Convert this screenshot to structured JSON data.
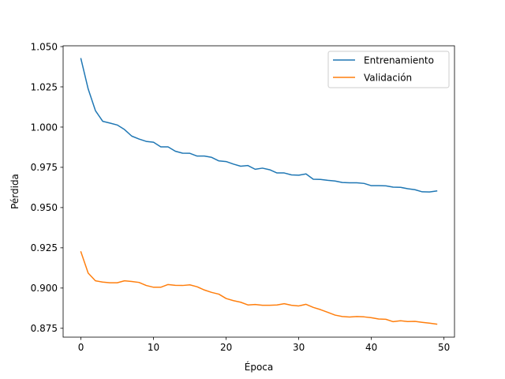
{
  "chart_data": {
    "type": "line",
    "title": "",
    "xlabel": "Época",
    "ylabel": "Pérdida",
    "xlim": [
      -2.45,
      51.45
    ],
    "ylim": [
      0.8695,
      1.0505
    ],
    "xticks": [
      0,
      10,
      20,
      30,
      40,
      50
    ],
    "yticks": [
      0.875,
      0.9,
      0.925,
      0.95,
      0.975,
      1.0,
      1.025,
      1.05
    ],
    "ytick_labels": [
      "0.875",
      "0.900",
      "0.925",
      "0.950",
      "0.975",
      "1.000",
      "1.025",
      "1.050"
    ],
    "grid": false,
    "legend_position": "top-right",
    "x": [
      0,
      1,
      2,
      3,
      4,
      5,
      6,
      7,
      8,
      9,
      10,
      11,
      12,
      13,
      14,
      15,
      16,
      17,
      18,
      19,
      20,
      21,
      22,
      23,
      24,
      25,
      26,
      27,
      28,
      29,
      30,
      31,
      32,
      33,
      34,
      35,
      36,
      37,
      38,
      39,
      40,
      41,
      42,
      43,
      44,
      45,
      46,
      47,
      48,
      49
    ],
    "series": [
      {
        "name": "Entrenamiento",
        "color": "#1f77b4",
        "values": [
          1.0425,
          1.0237,
          1.0102,
          1.0036,
          1.0025,
          1.0013,
          0.9985,
          0.9944,
          0.9926,
          0.9911,
          0.9906,
          0.9877,
          0.9877,
          0.985,
          0.9838,
          0.9837,
          0.982,
          0.982,
          0.9812,
          0.979,
          0.9786,
          0.977,
          0.9757,
          0.9761,
          0.9738,
          0.9745,
          0.9735,
          0.9715,
          0.9715,
          0.9703,
          0.9701,
          0.9709,
          0.9676,
          0.9675,
          0.9669,
          0.9665,
          0.9656,
          0.9654,
          0.9654,
          0.965,
          0.9636,
          0.9636,
          0.9635,
          0.9627,
          0.9626,
          0.9617,
          0.9611,
          0.9598,
          0.9597,
          0.9603
        ]
      },
      {
        "name": "Validación",
        "color": "#ff7f0e",
        "values": [
          0.9225,
          0.9093,
          0.9045,
          0.9037,
          0.9033,
          0.9033,
          0.9045,
          0.9041,
          0.9035,
          0.9016,
          0.9005,
          0.9005,
          0.9022,
          0.9017,
          0.9016,
          0.902,
          0.9008,
          0.8988,
          0.8973,
          0.8962,
          0.8935,
          0.8922,
          0.8912,
          0.8895,
          0.8898,
          0.8893,
          0.8893,
          0.8895,
          0.8903,
          0.8893,
          0.8889,
          0.8899,
          0.888,
          0.8866,
          0.8849,
          0.8832,
          0.8823,
          0.882,
          0.8823,
          0.8821,
          0.8816,
          0.8808,
          0.8806,
          0.8791,
          0.8797,
          0.8792,
          0.8793,
          0.8787,
          0.8782,
          0.8776
        ]
      }
    ]
  }
}
